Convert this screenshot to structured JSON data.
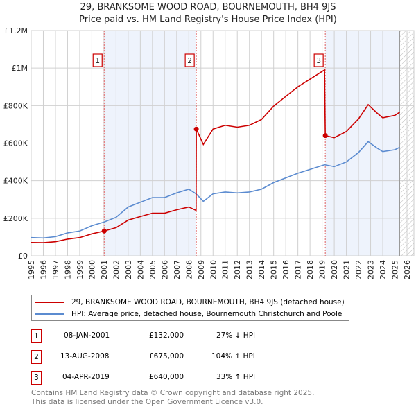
{
  "chart_data": {
    "type": "line",
    "title": "29, BRANKSOME WOOD ROAD, BOURNEMOUTH, BH4 9JS",
    "subtitle": "Price paid vs. HM Land Registry's House Price Index (HPI)",
    "xlim": [
      1995,
      2026
    ],
    "ylim": [
      0,
      1200000
    ],
    "x_ticks": [
      "1995",
      "1996",
      "1997",
      "1998",
      "1999",
      "2000",
      "2001",
      "2002",
      "2003",
      "2004",
      "2005",
      "2006",
      "2007",
      "2008",
      "2009",
      "2010",
      "2011",
      "2012",
      "2013",
      "2014",
      "2015",
      "2016",
      "2017",
      "2018",
      "2019",
      "2020",
      "2021",
      "2022",
      "2023",
      "2024",
      "2025",
      "2026"
    ],
    "y_ticks": [
      {
        "v": 0,
        "label": "£0"
      },
      {
        "v": 200000,
        "label": "£200K"
      },
      {
        "v": 400000,
        "label": "£400K"
      },
      {
        "v": 600000,
        "label": "£600K"
      },
      {
        "v": 800000,
        "label": "£800K"
      },
      {
        "v": 1000000,
        "label": "£1M"
      },
      {
        "v": 1200000,
        "label": "£1.2M"
      }
    ],
    "series": [
      {
        "name": "29, BRANKSOME WOOD ROAD, BOURNEMOUTH, BH4 9JS (detached house)",
        "color": "#cc0000",
        "x": [
          1995,
          1996,
          1997,
          1998,
          1999,
          2000,
          2001.02,
          2002,
          2003,
          2004,
          2005,
          2006,
          2007,
          2008,
          2008.6,
          2008.62,
          2009.2,
          2010,
          2011,
          2012,
          2013,
          2014,
          2015,
          2016,
          2017,
          2018,
          2019.2,
          2019.26,
          2020,
          2021,
          2022,
          2022.8,
          2023.5,
          2024,
          2025,
          2025.4
        ],
        "y": [
          71000,
          70000,
          75000,
          89000,
          97000,
          117000,
          132000,
          150000,
          190000,
          209000,
          227000,
          227000,
          245000,
          260000,
          242000,
          675000,
          593000,
          675000,
          695000,
          685000,
          695000,
          726000,
          797000,
          849000,
          900000,
          941000,
          990000,
          640000,
          629000,
          662000,
          729000,
          805000,
          762000,
          735000,
          748000,
          765000
        ]
      },
      {
        "name": "HPI: Average price, detached house, Bournemouth Christchurch and Poole",
        "color": "#5b8bd0",
        "x": [
          1995,
          1996,
          1997,
          1998,
          1999,
          2000,
          2001.02,
          2002,
          2003,
          2004,
          2005,
          2006,
          2007,
          2008,
          2008.6,
          2009.2,
          2010,
          2011,
          2012,
          2013,
          2014,
          2015,
          2016,
          2017,
          2018,
          2019.2,
          2020,
          2021,
          2022,
          2022.8,
          2023.5,
          2024,
          2025,
          2025.4
        ],
        "y": [
          97000,
          95000,
          102000,
          122000,
          132000,
          160000,
          180000,
          205000,
          260000,
          285000,
          310000,
          310000,
          335000,
          355000,
          330000,
          290000,
          330000,
          340000,
          335000,
          340000,
          355000,
          390000,
          415000,
          440000,
          460000,
          485000,
          475000,
          500000,
          550000,
          608000,
          575000,
          555000,
          565000,
          578000
        ]
      }
    ],
    "sales": [
      {
        "n": "1",
        "x": 2001.02,
        "y": 132000
      },
      {
        "n": "2",
        "x": 2008.62,
        "y": 675000
      },
      {
        "n": "3",
        "x": 2019.26,
        "y": 640000
      }
    ],
    "data_end": 2025.4
  },
  "legend": {
    "property": "29, BRANKSOME WOOD ROAD, BOURNEMOUTH, BH4 9JS (detached house)",
    "hpi": "HPI: Average price, detached house, Bournemouth Christchurch and Poole"
  },
  "table": [
    {
      "n": "1",
      "date": "08-JAN-2001",
      "price": "£132,000",
      "hpi": "27% ↓ HPI"
    },
    {
      "n": "2",
      "date": "13-AUG-2008",
      "price": "£675,000",
      "hpi": "104% ↑ HPI"
    },
    {
      "n": "3",
      "date": "04-APR-2019",
      "price": "£640,000",
      "hpi": "33% ↑ HPI"
    }
  ],
  "footer": [
    "Contains HM Land Registry data © Crown copyright and database right 2025.",
    "This data is licensed under the Open Government Licence v3.0."
  ]
}
